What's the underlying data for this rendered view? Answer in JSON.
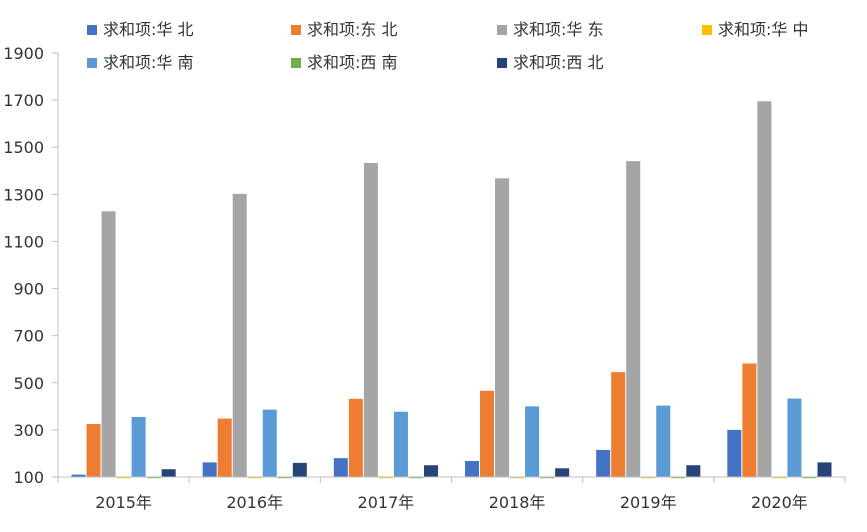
{
  "chart_data": {
    "type": "bar",
    "title": "",
    "xlabel": "",
    "ylabel": "",
    "categories": [
      "2015年",
      "2016年",
      "2017年",
      "2018年",
      "2019年",
      "2020年"
    ],
    "ylim": [
      100,
      1900
    ],
    "yticks": [
      100,
      300,
      500,
      700,
      900,
      1100,
      1300,
      1500,
      1700,
      1900
    ],
    "grid": false,
    "legend_position": "top",
    "series": [
      {
        "name": "求和项:华 北",
        "color": "#4472C4",
        "values": [
          110,
          162,
          180,
          168,
          215,
          300
        ]
      },
      {
        "name": "求和项:东 北",
        "color": "#ED7D31",
        "values": [
          325,
          348,
          432,
          466,
          545,
          582
        ]
      },
      {
        "name": "求和项:华 东",
        "color": "#A5A5A5",
        "values": [
          1228,
          1302,
          1433,
          1368,
          1441,
          1695
        ]
      },
      {
        "name": "求和项:华 中",
        "color": "#FFC000",
        "values": [
          95,
          95,
          95,
          95,
          95,
          95
        ]
      },
      {
        "name": "求和项:华 南",
        "color": "#5B9BD5",
        "values": [
          355,
          386,
          377,
          400,
          403,
          433
        ]
      },
      {
        "name": "求和项:西 南",
        "color": "#70AD47",
        "values": [
          95,
          95,
          95,
          95,
          95,
          95
        ]
      },
      {
        "name": "求和项:西 北",
        "color": "#264478",
        "values": [
          133,
          160,
          150,
          137,
          150,
          162
        ]
      }
    ]
  }
}
